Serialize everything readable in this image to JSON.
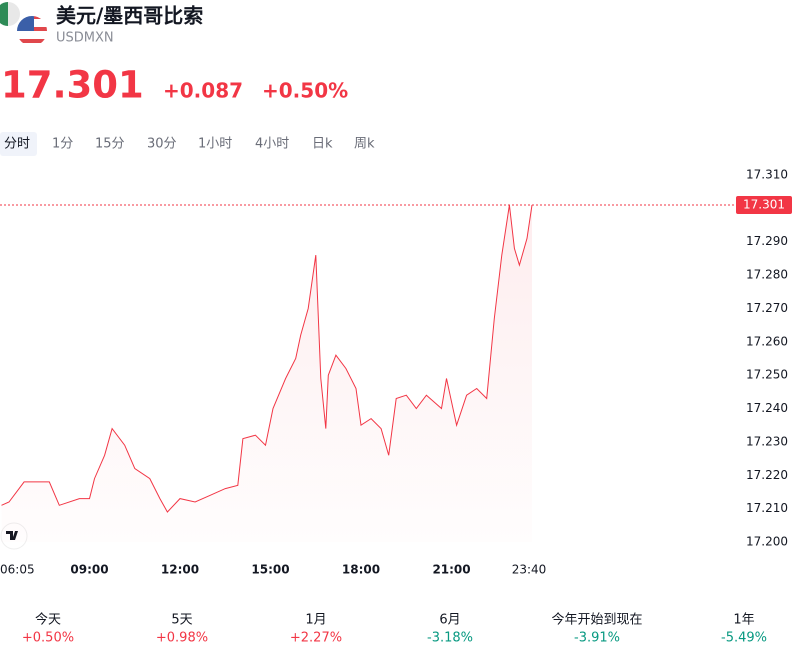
{
  "header": {
    "title": "美元/墨西哥比索",
    "symbol": "USDMXN",
    "price": "17.301",
    "change": "+0.087",
    "change_percent": "+0.50%"
  },
  "tabs": [
    "分时",
    "1分",
    "15分",
    "30分",
    "1小时",
    "4小时",
    "日k",
    "周k"
  ],
  "chart_data": {
    "type": "line",
    "color": "#f23645",
    "x": [
      "06:05",
      "06:20",
      "06:50",
      "07:40",
      "08:00",
      "08:40",
      "09:00",
      "09:10",
      "09:30",
      "09:45",
      "10:10",
      "10:30",
      "11:00",
      "11:20",
      "11:35",
      "12:00",
      "12:30",
      "13:00",
      "13:30",
      "13:55",
      "14:05",
      "14:30",
      "14:50",
      "15:05",
      "15:30",
      "15:50",
      "16:00",
      "16:15",
      "16:30",
      "16:40",
      "16:50",
      "16:55",
      "17:10",
      "17:30",
      "17:50",
      "18:00",
      "18:20",
      "18:40",
      "18:55",
      "19:10",
      "19:30",
      "19:50",
      "20:10",
      "20:40",
      "20:50",
      "21:10",
      "21:30",
      "21:50",
      "22:10",
      "22:25",
      "22:40",
      "22:55",
      "23:05",
      "23:15",
      "23:30",
      "23:40"
    ],
    "values": [
      17.211,
      17.212,
      17.218,
      17.218,
      17.211,
      17.213,
      17.213,
      17.219,
      17.226,
      17.234,
      17.229,
      17.222,
      17.219,
      17.213,
      17.209,
      17.213,
      17.212,
      17.214,
      17.216,
      17.217,
      17.231,
      17.232,
      17.229,
      17.24,
      17.249,
      17.255,
      17.262,
      17.27,
      17.286,
      17.249,
      17.234,
      17.25,
      17.256,
      17.252,
      17.246,
      17.235,
      17.237,
      17.234,
      17.226,
      17.243,
      17.244,
      17.24,
      17.244,
      17.24,
      17.249,
      17.235,
      17.244,
      17.246,
      17.243,
      17.267,
      17.286,
      17.301,
      17.288,
      17.283,
      17.291,
      17.301
    ],
    "xlim": [
      "06:05",
      "23:40"
    ],
    "xticks": [
      "06:05",
      "09:00",
      "12:00",
      "15:00",
      "18:00",
      "21:00",
      "23:40"
    ],
    "ylim": [
      17.2,
      17.31
    ],
    "yticks": [
      {
        "value": 17.2,
        "label": "17.200"
      },
      {
        "value": 17.21,
        "label": "17.210"
      },
      {
        "value": 17.22,
        "label": "17.220"
      },
      {
        "value": 17.23,
        "label": "17.230"
      },
      {
        "value": 17.24,
        "label": "17.240"
      },
      {
        "value": 17.25,
        "label": "17.250"
      },
      {
        "value": 17.26,
        "label": "17.260"
      },
      {
        "value": 17.27,
        "label": "17.270"
      },
      {
        "value": 17.28,
        "label": "17.280"
      },
      {
        "value": 17.29,
        "label": "17.290"
      },
      {
        "value": 17.31,
        "label": "17.310"
      }
    ],
    "price_line": 17.301
  },
  "performance": [
    {
      "label": "今天",
      "value": "+0.50%"
    },
    {
      "label": "5天",
      "value": "+0.98%"
    },
    {
      "label": "1月",
      "value": "+2.27%"
    },
    {
      "label": "6月",
      "value": "-3.18%"
    },
    {
      "label": "今年开始到现在",
      "value": "-3.91%"
    },
    {
      "label": "1年",
      "value": "-5.49%"
    }
  ]
}
